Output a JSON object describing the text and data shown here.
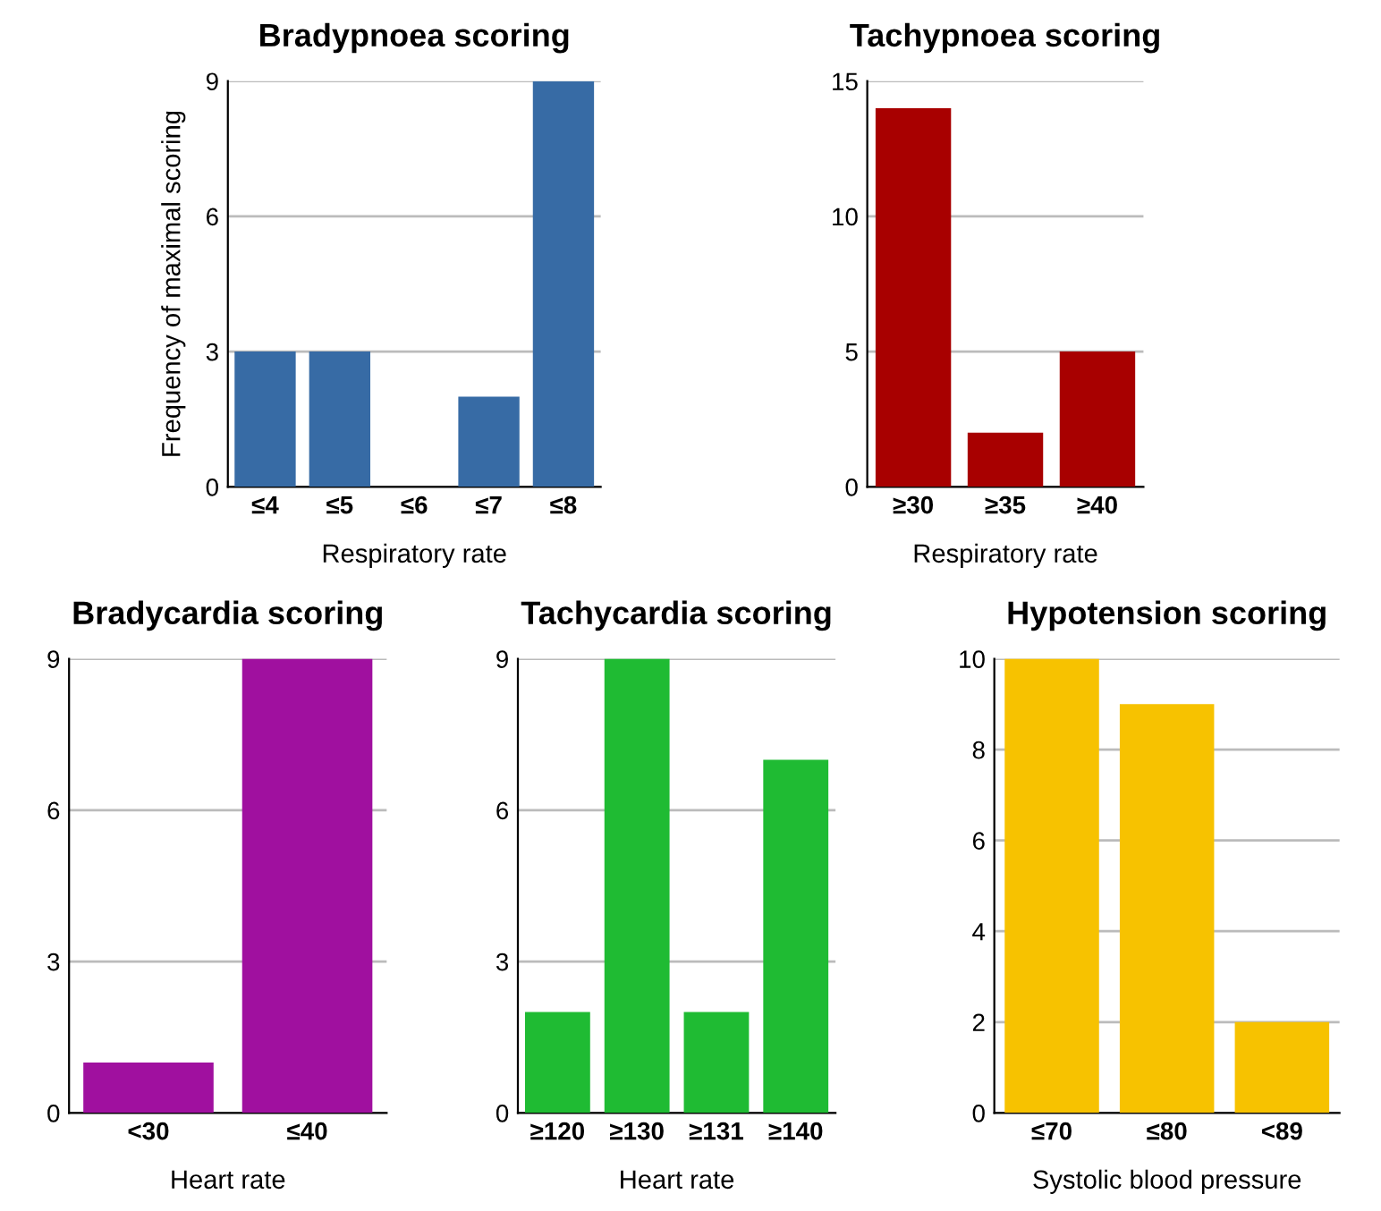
{
  "chart_data": [
    {
      "type": "bar",
      "title": "Bradypnoea scoring",
      "xlabel": "Respiratory rate",
      "ylabel": "Frequency of maximal scoring",
      "categories": [
        "≤4",
        "≤5",
        "≤6",
        "≤7",
        "≤8"
      ],
      "values": [
        3,
        3,
        0,
        2,
        9
      ],
      "color": "#376ba5",
      "ylim": [
        0,
        9
      ],
      "yticks": [
        0,
        3,
        6,
        9
      ],
      "grid": "y"
    },
    {
      "type": "bar",
      "title": "Tachypnoea scoring",
      "xlabel": "Respiratory rate",
      "categories": [
        "≥30",
        "≥35",
        "≥40"
      ],
      "values": [
        14,
        2,
        5
      ],
      "color": "#a80000",
      "ylim": [
        0,
        15
      ],
      "yticks": [
        0,
        5,
        10,
        15
      ],
      "grid": "y"
    },
    {
      "type": "bar",
      "title": "Bradycardia scoring",
      "xlabel": "Heart rate",
      "categories": [
        "<30",
        "≤40"
      ],
      "values": [
        1,
        9
      ],
      "color": "#a0109f",
      "ylim": [
        0,
        9
      ],
      "yticks": [
        0,
        3,
        6,
        9
      ],
      "grid": "y"
    },
    {
      "type": "bar",
      "title": "Tachycardia scoring",
      "xlabel": "Heart rate",
      "categories": [
        "≥120",
        "≥130",
        "≥131",
        "≥140"
      ],
      "values": [
        2,
        9,
        2,
        7
      ],
      "color": "#1fbb33",
      "ylim": [
        0,
        9
      ],
      "yticks": [
        0,
        3,
        6,
        9
      ],
      "grid": "y"
    },
    {
      "type": "bar",
      "title": "Hypotension scoring",
      "xlabel": "Systolic blood pressure",
      "categories": [
        "≤70",
        "≤80",
        "<89"
      ],
      "values": [
        10,
        9,
        2
      ],
      "color": "#f7c200",
      "ylim": [
        0,
        10
      ],
      "yticks": [
        0,
        2,
        4,
        6,
        8,
        10
      ],
      "grid": "y"
    }
  ]
}
